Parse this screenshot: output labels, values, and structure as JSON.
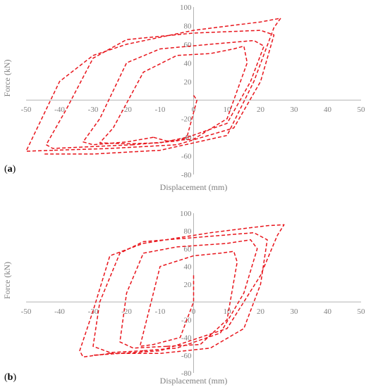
{
  "colors": {
    "curve": "#e8141b",
    "axis": "#b3b3b3",
    "text": "#7f7f7f"
  },
  "chart_data": [
    {
      "type": "line",
      "panel_label": "a",
      "xlabel": "Displacement (mm)",
      "ylabel": "Force (kN)",
      "xlim": [
        -50,
        50
      ],
      "ylim": [
        -80,
        100
      ],
      "xticks": [
        -50,
        -40,
        -30,
        -20,
        -10,
        0,
        10,
        20,
        30,
        40,
        50
      ],
      "yticks": [
        -80,
        -60,
        -40,
        -20,
        0,
        20,
        40,
        60,
        80,
        100
      ],
      "grid": false,
      "legend": "none",
      "series": [
        {
          "x": [
            0,
            1,
            -2,
            -10,
            -20,
            -28,
            -24,
            -15,
            -5,
            5,
            12,
            15,
            16,
            10,
            0,
            -8,
            -12
          ],
          "y": [
            5,
            0,
            -40,
            -46,
            -47,
            -46,
            -30,
            30,
            48,
            50,
            55,
            58,
            40,
            -20,
            -42,
            -44,
            -40
          ]
        },
        {
          "x": [
            -12,
            -20,
            -30,
            -33,
            -28,
            -20,
            -10,
            5,
            18,
            21,
            17,
            10,
            -5,
            -18
          ],
          "y": [
            -40,
            -45,
            -48,
            -45,
            -20,
            40,
            55,
            60,
            64,
            58,
            20,
            -25,
            -44,
            -48
          ]
        },
        {
          "x": [
            -18,
            -30,
            -42,
            -44,
            -38,
            -30,
            -20,
            0,
            20,
            24,
            20,
            12,
            -5,
            -25,
            -42
          ],
          "y": [
            -48,
            -50,
            -52,
            -48,
            -10,
            45,
            65,
            72,
            75,
            70,
            20,
            -30,
            -48,
            -52,
            -54
          ]
        },
        {
          "x": [
            -42,
            -50,
            -48,
            -40,
            -30,
            -20,
            0,
            20,
            26,
            24,
            18,
            10,
            -10,
            -30,
            -45
          ],
          "y": [
            -54,
            -55,
            -40,
            20,
            48,
            60,
            75,
            84,
            88,
            78,
            20,
            -38,
            -54,
            -58,
            -58
          ]
        }
      ]
    },
    {
      "type": "line",
      "panel_label": "b",
      "xlabel": "Displacement (mm)",
      "ylabel": "Force (kN)",
      "xlim": [
        -50,
        50
      ],
      "ylim": [
        -80,
        100
      ],
      "xticks": [
        -50,
        -40,
        -30,
        -20,
        -10,
        0,
        10,
        20,
        30,
        40,
        50
      ],
      "yticks": [
        -80,
        -60,
        -40,
        -20,
        0,
        20,
        40,
        60,
        80,
        100
      ],
      "grid": false,
      "legend": "none",
      "series": [
        {
          "x": [
            0,
            0,
            -4,
            -12,
            -16,
            -14,
            -10,
            0,
            8,
            12,
            13,
            10,
            2,
            -8
          ],
          "y": [
            30,
            0,
            -40,
            -48,
            -50,
            -20,
            40,
            52,
            55,
            57,
            45,
            -20,
            -48,
            -50
          ]
        },
        {
          "x": [
            -8,
            -18,
            -22,
            -20,
            -15,
            -5,
            10,
            17,
            19,
            15,
            8,
            -5,
            -15
          ],
          "y": [
            -50,
            -52,
            -45,
            10,
            55,
            62,
            66,
            70,
            60,
            10,
            -35,
            -52,
            -55
          ]
        },
        {
          "x": [
            -15,
            -25,
            -30,
            -28,
            -22,
            -15,
            5,
            18,
            22,
            20,
            15,
            5,
            -10,
            -25
          ],
          "y": [
            -55,
            -57,
            -50,
            0,
            55,
            68,
            74,
            78,
            70,
            20,
            -30,
            -52,
            -58,
            -58
          ]
        },
        {
          "x": [
            -25,
            -33,
            -34,
            -30,
            -25,
            -15,
            5,
            22,
            27,
            25,
            20,
            10,
            -10,
            -30
          ],
          "y": [
            -58,
            -62,
            -55,
            -10,
            52,
            66,
            78,
            86,
            87,
            75,
            30,
            -30,
            -55,
            -60
          ]
        }
      ]
    }
  ]
}
